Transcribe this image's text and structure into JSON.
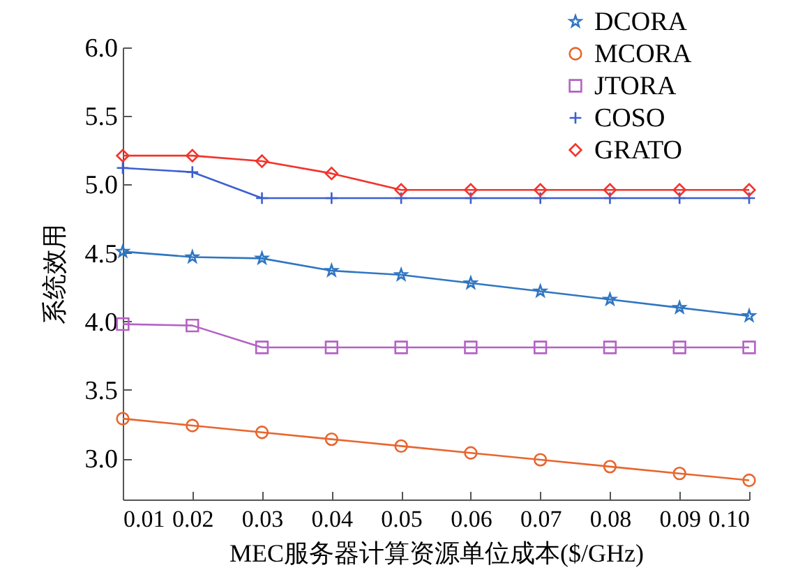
{
  "chart_data": {
    "type": "line",
    "xlabel": "MEC服务器计算资源单位成本($/GHz)",
    "ylabel": "系统效用",
    "x": [
      0.01,
      0.02,
      0.03,
      0.04,
      0.05,
      0.06,
      0.07,
      0.08,
      0.09,
      0.1
    ],
    "series": [
      {
        "name": "DCORA",
        "color": "#2f76c2",
        "marker": "star",
        "values": [
          4.51,
          4.47,
          4.46,
          4.37,
          4.34,
          4.28,
          4.22,
          4.16,
          4.1,
          4.04
        ]
      },
      {
        "name": "MCORA",
        "color": "#e8652e",
        "marker": "circle",
        "values": [
          3.29,
          3.24,
          3.19,
          3.14,
          3.09,
          3.04,
          2.99,
          2.94,
          2.89,
          2.84
        ]
      },
      {
        "name": "JTORA",
        "color": "#b461c4",
        "marker": "square",
        "values": [
          3.98,
          3.97,
          3.81,
          3.81,
          3.81,
          3.81,
          3.81,
          3.81,
          3.81,
          3.81
        ]
      },
      {
        "name": "COSO",
        "color": "#3c5fcf",
        "marker": "cross",
        "values": [
          5.12,
          5.09,
          4.9,
          4.9,
          4.9,
          4.9,
          4.9,
          4.9,
          4.9,
          4.9
        ]
      },
      {
        "name": "GRATO",
        "color": "#f2342c",
        "marker": "diamond",
        "values": [
          5.21,
          5.21,
          5.17,
          5.08,
          4.96,
          4.96,
          4.96,
          4.96,
          4.96,
          4.96
        ]
      }
    ],
    "xlim": [
      0.01,
      0.1
    ],
    "xticks": [
      0.01,
      0.02,
      0.03,
      0.04,
      0.05,
      0.06,
      0.07,
      0.08,
      0.09,
      {
        "value": 0.1,
        "label": "0.10"
      }
    ],
    "ylim": [
      2.7,
      6.0
    ],
    "yticks": [
      {
        "value": 3.0,
        "label": "3.0"
      },
      3.5,
      {
        "value": 4.0,
        "label": "4.0"
      },
      4.5,
      {
        "value": 5.0,
        "label": "5.0"
      },
      5.5,
      {
        "value": 6.0,
        "label": "6.0"
      }
    ],
    "grid": false,
    "legend": "top right",
    "line_style": "solid"
  }
}
